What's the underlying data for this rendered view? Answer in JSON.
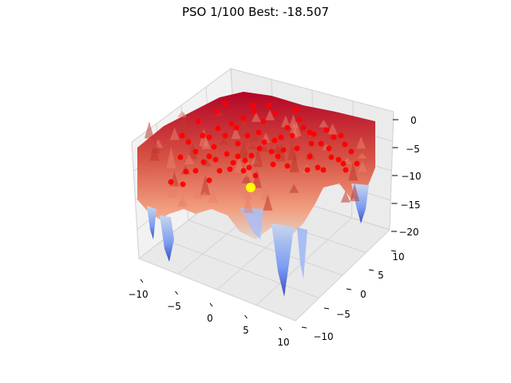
{
  "chart_data": {
    "type": "surface3d",
    "title": "PSO 1/100 Best: -18.507",
    "surface_colormap": "coolwarm",
    "x_ticks": [
      -10,
      -5,
      0,
      5,
      10
    ],
    "y_ticks": [
      -10,
      -5,
      0,
      5,
      10
    ],
    "z_ticks": [
      0,
      -5,
      -10,
      -15,
      -20
    ],
    "x_tick_labels": [
      "−10",
      "−5",
      "0",
      "5",
      "10"
    ],
    "y_tick_labels": [
      "−10",
      "−5",
      "0",
      "5",
      "10"
    ],
    "z_tick_labels": [
      "0",
      "−5",
      "−10",
      "−15",
      "−20"
    ],
    "xlim": [
      -10,
      10
    ],
    "ylim": [
      -10,
      10
    ],
    "zlim": [
      -20,
      0
    ],
    "grid": true,
    "particle_color": "#ff0000",
    "best_color": "#ffff00",
    "best_value": -18.507,
    "iteration": 1,
    "iterations_total": 100
  }
}
